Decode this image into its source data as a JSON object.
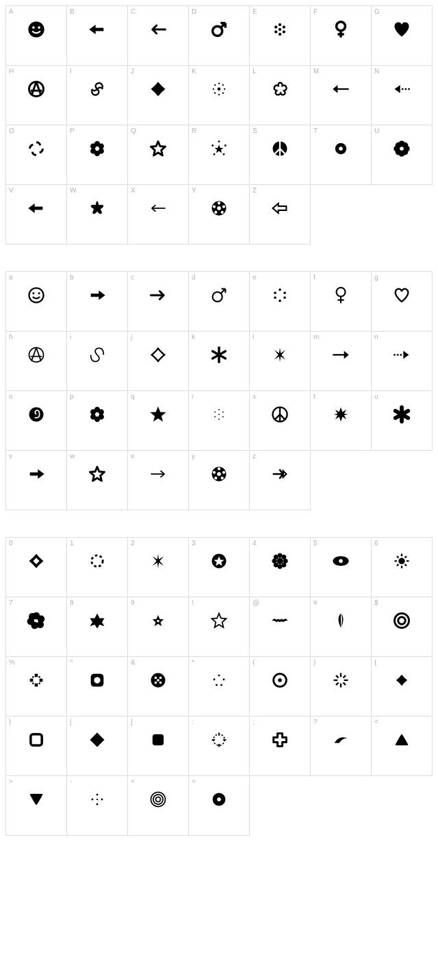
{
  "background_color": "#ffffff",
  "cell_border_color": "#dcdcdc",
  "label_color": "#b0b0b0",
  "glyph_color": "#000000",
  "cell_size": {
    "w": 89,
    "h": 88
  },
  "label_fontsize": 10,
  "grids": [
    {
      "id": "uppercase",
      "columns": 7,
      "cells": [
        {
          "label": "A",
          "glyph": "smiley-filled"
        },
        {
          "label": "B",
          "glyph": "arrow-left-bold"
        },
        {
          "label": "C",
          "glyph": "arrow-left-thin"
        },
        {
          "label": "D",
          "glyph": "male-sign"
        },
        {
          "label": "E",
          "glyph": "dots-cluster"
        },
        {
          "label": "F",
          "glyph": "female-sign"
        },
        {
          "label": "G",
          "glyph": "heart-filled"
        },
        {
          "label": "H",
          "glyph": "anarchy-filled"
        },
        {
          "label": "I",
          "glyph": "spiral-galaxy"
        },
        {
          "label": "J",
          "glyph": "diamond-filled"
        },
        {
          "label": "K",
          "glyph": "sun-dots-small"
        },
        {
          "label": "L",
          "glyph": "flower-outline"
        },
        {
          "label": "M",
          "glyph": "arrow-left-tail"
        },
        {
          "label": "N",
          "glyph": "arrow-left-dotted"
        },
        {
          "label": "O",
          "glyph": "swirl-segments"
        },
        {
          "label": "P",
          "glyph": "flower-6-filled"
        },
        {
          "label": "Q",
          "glyph": "star-outline"
        },
        {
          "label": "R",
          "glyph": "star-dots"
        },
        {
          "label": "S",
          "glyph": "peace-sign"
        },
        {
          "label": "T",
          "glyph": "gear-small"
        },
        {
          "label": "U",
          "glyph": "flower-bold"
        },
        {
          "label": "V",
          "glyph": "arrow-left-bold"
        },
        {
          "label": "W",
          "glyph": "star-rounded-filled"
        },
        {
          "label": "X",
          "glyph": "arrow-left-line"
        },
        {
          "label": "Y",
          "glyph": "soccer-ball"
        },
        {
          "label": "Z",
          "glyph": "arrow-left-outline"
        }
      ]
    },
    {
      "id": "lowercase",
      "columns": 7,
      "cells": [
        {
          "label": "a",
          "glyph": "smiley-outline"
        },
        {
          "label": "b",
          "glyph": "arrow-right-bold"
        },
        {
          "label": "c",
          "glyph": "arrow-right-thin"
        },
        {
          "label": "d",
          "glyph": "male-sign-outline"
        },
        {
          "label": "e",
          "glyph": "dots-sparse"
        },
        {
          "label": "f",
          "glyph": "female-sign-outline"
        },
        {
          "label": "g",
          "glyph": "heart-outline"
        },
        {
          "label": "h",
          "glyph": "anarchy-outline"
        },
        {
          "label": "i",
          "glyph": "spiral-thin"
        },
        {
          "label": "j",
          "glyph": "diamond-outline"
        },
        {
          "label": "k",
          "glyph": "asterisk-6"
        },
        {
          "label": "l",
          "glyph": "starburst-8"
        },
        {
          "label": "m",
          "glyph": "arrow-right-tail"
        },
        {
          "label": "n",
          "glyph": "arrow-right-dotted"
        },
        {
          "label": "o",
          "glyph": "spiral-circle"
        },
        {
          "label": "p",
          "glyph": "flower-6-filled"
        },
        {
          "label": "q",
          "glyph": "star-filled"
        },
        {
          "label": "r",
          "glyph": "dots-constellation"
        },
        {
          "label": "s",
          "glyph": "peace-outline"
        },
        {
          "label": "t",
          "glyph": "starburst-filled"
        },
        {
          "label": "u",
          "glyph": "asterisk-bold"
        },
        {
          "label": "v",
          "glyph": "arrow-right-bold"
        },
        {
          "label": "w",
          "glyph": "star-outline"
        },
        {
          "label": "x",
          "glyph": "arrow-right-line"
        },
        {
          "label": "y",
          "glyph": "soccer-ball"
        },
        {
          "label": "z",
          "glyph": "arrow-right-curved"
        }
      ]
    },
    {
      "id": "symbols",
      "columns": 7,
      "cells": [
        {
          "label": "0",
          "glyph": "diamond-hollow"
        },
        {
          "label": "1",
          "glyph": "circle-dashed"
        },
        {
          "label": "2",
          "glyph": "starburst-8"
        },
        {
          "label": "3",
          "glyph": "star-in-circle"
        },
        {
          "label": "4",
          "glyph": "flower-8-filled"
        },
        {
          "label": "5",
          "glyph": "eye-circle"
        },
        {
          "label": "6",
          "glyph": "sun-small"
        },
        {
          "label": "7",
          "glyph": "flower-blob"
        },
        {
          "label": "8",
          "glyph": "star-6-filled"
        },
        {
          "label": "9",
          "glyph": "star-5-small"
        },
        {
          "label": "!",
          "glyph": "star-outline-thin"
        },
        {
          "label": "@",
          "glyph": "bat"
        },
        {
          "label": "#",
          "glyph": "leaf-diamond"
        },
        {
          "label": "$",
          "glyph": "target"
        },
        {
          "label": "%",
          "glyph": "fractal"
        },
        {
          "label": "^",
          "glyph": "square-rounded-dot"
        },
        {
          "label": "&",
          "glyph": "circle-dots-pattern"
        },
        {
          "label": "*",
          "glyph": "dots-5"
        },
        {
          "label": "(",
          "glyph": "circle-dot"
        },
        {
          "label": ")",
          "glyph": "burst-lines"
        },
        {
          "label": "{",
          "glyph": "diamond-small"
        },
        {
          "label": "}",
          "glyph": "square-hollow"
        },
        {
          "label": "[",
          "glyph": "diamond-solid"
        },
        {
          "label": "]",
          "glyph": "square-rounded-filled"
        },
        {
          "label": ":",
          "glyph": "crosshair-dashed"
        },
        {
          "label": ";",
          "glyph": "plus-outline"
        },
        {
          "label": "?",
          "glyph": "swoosh"
        },
        {
          "label": "<",
          "glyph": "triangle-up"
        },
        {
          "label": ">",
          "glyph": "triangle-down"
        },
        {
          "label": "-",
          "glyph": "dots-cross"
        },
        {
          "label": "+",
          "glyph": "spiral-target"
        },
        {
          "label": "=",
          "glyph": "circle-ring-dot"
        }
      ]
    }
  ]
}
